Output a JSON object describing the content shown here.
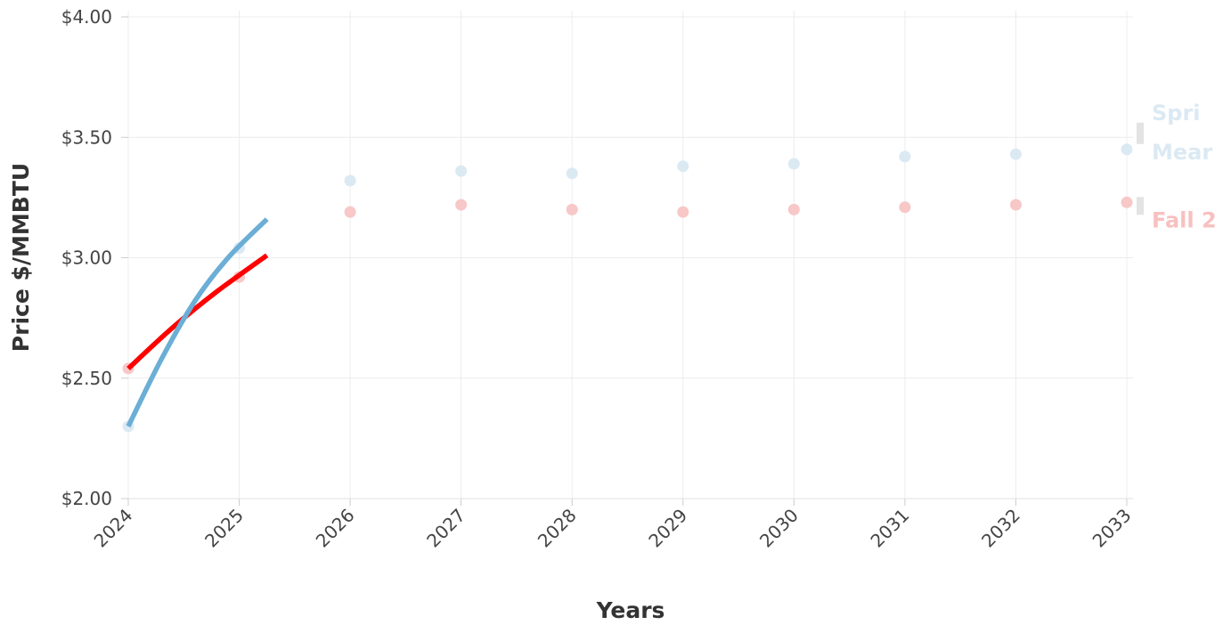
{
  "chart_data": {
    "type": "line",
    "xlabel": "Years",
    "ylabel": "Price $/MMBTU",
    "x": [
      "2024",
      "2025",
      "2026",
      "2027",
      "2028",
      "2029",
      "2030",
      "2031",
      "2032",
      "2033"
    ],
    "ylim": [
      2.0,
      4.0
    ],
    "yticks": [
      2.0,
      2.5,
      3.0,
      3.5,
      4.0
    ],
    "ytick_labels": [
      "$2.00",
      "$2.50",
      "$3.00",
      "$3.50",
      "$4.00"
    ],
    "grid": true,
    "series": [
      {
        "name": "Fall 2",
        "color": "#ff0000",
        "point_color": "#f8c7c7",
        "values": [
          2.54,
          2.92,
          3.19,
          3.22,
          3.2,
          3.19,
          3.2,
          3.21,
          3.22,
          3.23
        ],
        "line_values": [
          [
            2024,
            2.54
          ],
          [
            2024.4,
            2.71
          ],
          [
            2024.8,
            2.86
          ],
          [
            2025.25,
            3.01
          ]
        ]
      },
      {
        "name": "Spri",
        "name_2": "Mear",
        "color": "#6baed6",
        "point_color": "#dbe9f3",
        "values": [
          2.3,
          3.04,
          3.32,
          3.36,
          3.35,
          3.38,
          3.39,
          3.42,
          3.43,
          3.45
        ],
        "line_values": [
          [
            2024,
            2.3
          ],
          [
            2024.3,
            2.58
          ],
          [
            2024.6,
            2.82
          ],
          [
            2024.9,
            3.0
          ],
          [
            2025.25,
            3.16
          ]
        ]
      }
    ],
    "legend": "right, clipped end-of-line labels"
  }
}
